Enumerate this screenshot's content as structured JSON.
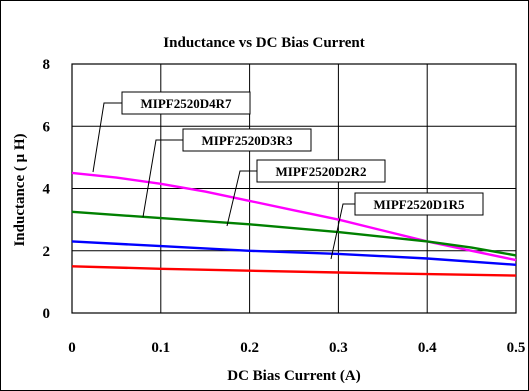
{
  "chart_data": {
    "type": "line",
    "title": "Inductance vs DC Bias Current",
    "xlabel": "DC Bias Current (A)",
    "ylabel": "Inductance ( μ H)",
    "xlim": [
      0,
      0.5
    ],
    "ylim": [
      0,
      8
    ],
    "xticks": [
      "0",
      "0.1",
      "0.2",
      "0.3",
      "0.4",
      "0.5"
    ],
    "yticks": [
      "0",
      "2",
      "4",
      "6",
      "8"
    ],
    "grid": true,
    "series": [
      {
        "name": "MIPF2520D4R7",
        "color": "#ff00ff",
        "x": [
          0,
          0.05,
          0.1,
          0.15,
          0.2,
          0.25,
          0.3,
          0.35,
          0.4,
          0.45,
          0.5
        ],
        "y": [
          4.5,
          4.35,
          4.15,
          3.9,
          3.6,
          3.3,
          3.0,
          2.65,
          2.3,
          2.0,
          1.7
        ]
      },
      {
        "name": "MIPF2520D3R3",
        "color": "#008000",
        "x": [
          0,
          0.1,
          0.2,
          0.3,
          0.4,
          0.45,
          0.5
        ],
        "y": [
          3.25,
          3.05,
          2.85,
          2.6,
          2.3,
          2.1,
          1.85
        ]
      },
      {
        "name": "MIPF2520D2R2",
        "color": "#0000ff",
        "x": [
          0,
          0.1,
          0.2,
          0.3,
          0.4,
          0.5
        ],
        "y": [
          2.3,
          2.15,
          2.0,
          1.9,
          1.75,
          1.55
        ]
      },
      {
        "name": "MIPF2520D1R5",
        "color": "#ff0000",
        "x": [
          0,
          0.1,
          0.2,
          0.3,
          0.4,
          0.5
        ],
        "y": [
          1.5,
          1.42,
          1.36,
          1.3,
          1.25,
          1.2
        ]
      }
    ]
  }
}
